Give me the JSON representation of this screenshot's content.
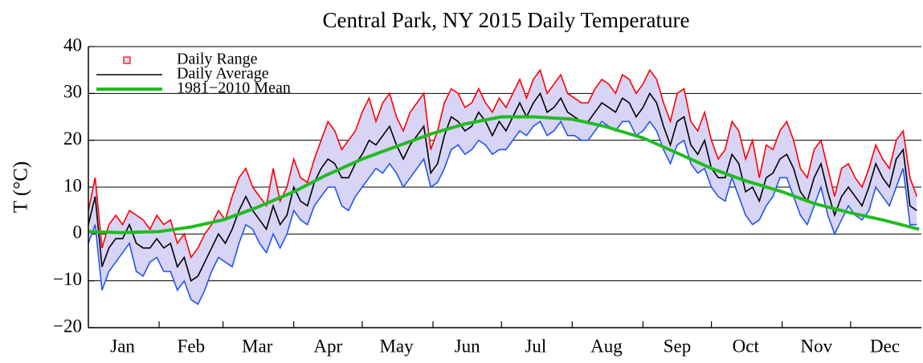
{
  "chart_data": {
    "type": "range_line",
    "title": "Central Park, NY  2015 Daily Temperature",
    "y_label": "T (°C)",
    "xlim": [
      1,
      366
    ],
    "ylim": [
      -20,
      40
    ],
    "yticks": [
      {
        "value": -20,
        "label": "−20"
      },
      {
        "value": -10,
        "label": "−10"
      },
      0,
      10,
      20,
      30,
      40
    ],
    "xticks": [
      {
        "value": 16,
        "label": "Jan"
      },
      {
        "value": 46,
        "label": "Feb"
      },
      {
        "value": 75,
        "label": "Mar"
      },
      {
        "value": 106,
        "label": "Apr"
      },
      {
        "value": 136,
        "label": "May"
      },
      {
        "value": 167,
        "label": "Jun"
      },
      {
        "value": 197,
        "label": "Jul"
      },
      {
        "value": 228,
        "label": "Aug"
      },
      {
        "value": 259,
        "label": "Sep"
      },
      {
        "value": 289,
        "label": "Oct"
      },
      {
        "value": 320,
        "label": "Nov"
      },
      {
        "value": 350,
        "label": "Dec"
      }
    ],
    "xminor_ticks": [
      32,
      60,
      91,
      121,
      152,
      182,
      213,
      244,
      274,
      305,
      335
    ],
    "grid": true,
    "legend": "upper left",
    "x": [
      1,
      4,
      7,
      10,
      13,
      16,
      19,
      22,
      25,
      28,
      31,
      34,
      37,
      40,
      43,
      46,
      49,
      52,
      55,
      58,
      61,
      64,
      67,
      70,
      73,
      76,
      79,
      82,
      85,
      88,
      91,
      94,
      97,
      100,
      103,
      106,
      109,
      112,
      115,
      118,
      121,
      124,
      127,
      130,
      133,
      136,
      139,
      142,
      145,
      148,
      151,
      154,
      157,
      160,
      163,
      166,
      169,
      172,
      175,
      178,
      181,
      184,
      187,
      190,
      193,
      196,
      199,
      202,
      205,
      208,
      211,
      214,
      217,
      220,
      223,
      226,
      229,
      232,
      235,
      238,
      241,
      244,
      247,
      250,
      253,
      256,
      259,
      262,
      265,
      268,
      271,
      274,
      277,
      280,
      283,
      286,
      289,
      292,
      295,
      298,
      301,
      304,
      307,
      310,
      313,
      316,
      319,
      322,
      325,
      328,
      331,
      334,
      337,
      340,
      343,
      346,
      349,
      352,
      355,
      358,
      361,
      364
    ],
    "series": [
      {
        "name": "Daily Range",
        "color": "#d8d4f6",
        "high_color": "#ff0000",
        "low_color": "#2255ee",
        "values_high": [
          5,
          12,
          -3,
          2,
          4,
          2,
          5,
          4,
          3,
          1,
          4,
          2,
          3,
          -2,
          0,
          -5,
          -3,
          0,
          2,
          5,
          3,
          8,
          12,
          14,
          10,
          8,
          6,
          14,
          7,
          10,
          16,
          12,
          11,
          16,
          20,
          24,
          22,
          18,
          20,
          22,
          26,
          29,
          24,
          28,
          30,
          25,
          22,
          26,
          28,
          30,
          18,
          22,
          28,
          31,
          30,
          27,
          28,
          31,
          28,
          26,
          29,
          27,
          30,
          33,
          29,
          33,
          35,
          30,
          32,
          34,
          30,
          29,
          28,
          28,
          31,
          33,
          32,
          30,
          34,
          33,
          30,
          32,
          35,
          33,
          28,
          24,
          30,
          31,
          24,
          22,
          26,
          20,
          16,
          18,
          24,
          22,
          16,
          20,
          12,
          19,
          18,
          22,
          24,
          20,
          14,
          12,
          18,
          20,
          14,
          8,
          14,
          15,
          12,
          10,
          14,
          19,
          16,
          14,
          20,
          22,
          12,
          8
        ],
        "values_low": [
          -2,
          2,
          -12,
          -8,
          -6,
          -4,
          -2,
          -8,
          -9,
          -6,
          -5,
          -8,
          -8,
          -12,
          -10,
          -14,
          -15,
          -12,
          -8,
          -5,
          -6,
          -7,
          -2,
          2,
          1,
          -2,
          -4,
          0,
          -3,
          0,
          5,
          3,
          2,
          6,
          8,
          10,
          10,
          6,
          5,
          8,
          10,
          12,
          14,
          13,
          15,
          13,
          10,
          12,
          14,
          16,
          10,
          11,
          14,
          18,
          19,
          17,
          18,
          20,
          19,
          17,
          18,
          18,
          20,
          22,
          21,
          23,
          24,
          21,
          22,
          24,
          21,
          21,
          20,
          20,
          22,
          24,
          23,
          22,
          24,
          24,
          21,
          22,
          24,
          22,
          18,
          15,
          19,
          20,
          15,
          13,
          14,
          10,
          8,
          7,
          12,
          8,
          4,
          2,
          3,
          6,
          8,
          12,
          12,
          8,
          4,
          2,
          6,
          10,
          4,
          0,
          3,
          6,
          4,
          3,
          5,
          10,
          8,
          6,
          10,
          14,
          2,
          2
        ]
      },
      {
        "name": "Daily Average",
        "color": "#000000",
        "values": [
          2,
          8,
          -7,
          -3,
          -1,
          -1,
          2,
          -2,
          -3,
          -3,
          -1,
          -3,
          -2,
          -7,
          -5,
          -10,
          -9,
          -6,
          -3,
          0,
          -2,
          1,
          5,
          8,
          5,
          3,
          1,
          6,
          2,
          4,
          10,
          7,
          6,
          11,
          14,
          16,
          15,
          12,
          12,
          15,
          17,
          20,
          19,
          21,
          23,
          19,
          16,
          19,
          21,
          23,
          13,
          15,
          21,
          25,
          24,
          22,
          23,
          26,
          24,
          21,
          24,
          22,
          25,
          28,
          25,
          28,
          30,
          26,
          27,
          29,
          26,
          25,
          24,
          24,
          26,
          28,
          27,
          26,
          29,
          28,
          25,
          27,
          30,
          28,
          23,
          19,
          24,
          25,
          19,
          17,
          20,
          14,
          12,
          12,
          17,
          15,
          9,
          10,
          7,
          12,
          13,
          16,
          17,
          14,
          9,
          7,
          12,
          15,
          9,
          4,
          8,
          10,
          8,
          6,
          10,
          15,
          12,
          10,
          16,
          18,
          6,
          5
        ]
      },
      {
        "name": "1981−2010 Mean",
        "color": "#22bb22",
        "x": [
          1,
          15,
          32,
          46,
          60,
          74,
          91,
          105,
          121,
          135,
          152,
          166,
          182,
          196,
          213,
          227,
          244,
          258,
          274,
          288,
          305,
          319,
          335,
          349,
          365
        ],
        "values": [
          0.5,
          0.3,
          0.5,
          1.5,
          3,
          5.5,
          9,
          12.5,
          16,
          18.5,
          21.5,
          23.5,
          25,
          25,
          24.5,
          23,
          20.5,
          17.5,
          14,
          11.5,
          9,
          6.5,
          4.5,
          3,
          1
        ]
      }
    ]
  }
}
